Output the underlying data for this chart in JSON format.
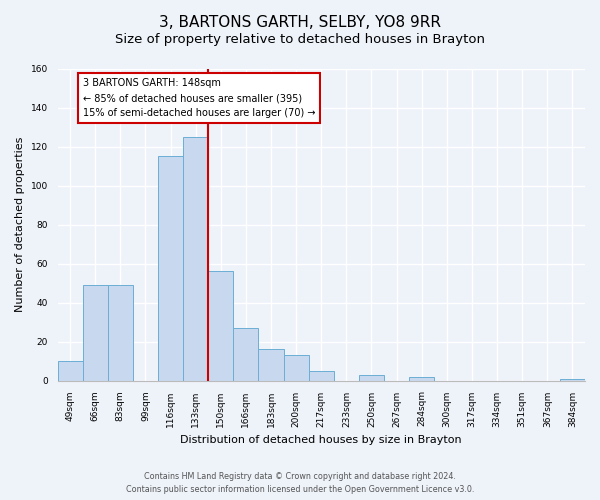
{
  "title": "3, BARTONS GARTH, SELBY, YO8 9RR",
  "subtitle": "Size of property relative to detached houses in Brayton",
  "xlabel": "Distribution of detached houses by size in Brayton",
  "ylabel": "Number of detached properties",
  "bar_labels": [
    "49sqm",
    "66sqm",
    "83sqm",
    "99sqm",
    "116sqm",
    "133sqm",
    "150sqm",
    "166sqm",
    "183sqm",
    "200sqm",
    "217sqm",
    "233sqm",
    "250sqm",
    "267sqm",
    "284sqm",
    "300sqm",
    "317sqm",
    "334sqm",
    "351sqm",
    "367sqm",
    "384sqm"
  ],
  "bar_values": [
    10,
    49,
    49,
    0,
    115,
    125,
    56,
    27,
    16,
    13,
    5,
    0,
    3,
    0,
    2,
    0,
    0,
    0,
    0,
    0,
    1
  ],
  "bar_color": "#c8d9ef",
  "bar_edge_color": "#6baed6",
  "vline_color": "#cc0000",
  "vline_at_index": 6,
  "annotation_lines": [
    "3 BARTONS GARTH: 148sqm",
    "← 85% of detached houses are smaller (395)",
    "15% of semi-detached houses are larger (70) →"
  ],
  "annotation_box_facecolor": "#ffffff",
  "annotation_box_edgecolor": "#cc0000",
  "ylim": [
    0,
    160
  ],
  "yticks": [
    0,
    20,
    40,
    60,
    80,
    100,
    120,
    140,
    160
  ],
  "footer1": "Contains HM Land Registry data © Crown copyright and database right 2024.",
  "footer2": "Contains public sector information licensed under the Open Government Licence v3.0.",
  "bg_color": "#eef2f9",
  "grid_color": "#ffffff",
  "title_fontsize": 11,
  "subtitle_fontsize": 9.5,
  "axis_label_fontsize": 8,
  "tick_fontsize": 6.5,
  "annot_fontsize": 7.0
}
